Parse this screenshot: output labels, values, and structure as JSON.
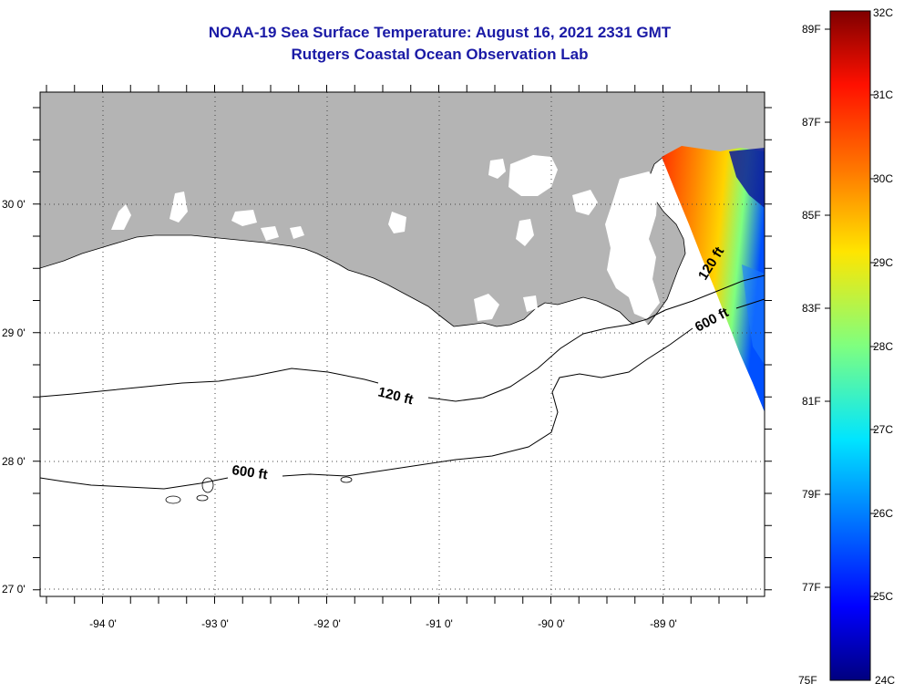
{
  "title": "NOAA-19 Sea Surface Temperature:  August 16, 2021 2331 GMT",
  "subtitle": "Rutgers Coastal Ocean Observation Lab",
  "map": {
    "lon_labels": [
      "-94 0'",
      "-93 0'",
      "-92 0'",
      "-91 0'",
      "-90 0'",
      "-89 0'"
    ],
    "lat_labels": [
      "30 0'",
      "29 0'",
      "28 0'",
      "27 0'"
    ],
    "contour_labels": {
      "shelf_120_west": "120 ft",
      "shelf_120_east": "120 ft",
      "slope_600_west": "600 ft",
      "slope_600_east": "600 ft"
    },
    "grid": "dotted",
    "colors": {
      "land": "#b4b4b4",
      "water": "#ffffff",
      "no_data": "#ffffff",
      "title": "#1a1aa6"
    }
  },
  "colorbar": {
    "fahrenheit_labels": [
      "89F",
      "87F",
      "85F",
      "83F",
      "81F",
      "79F",
      "77F",
      "75F"
    ],
    "celsius_labels": [
      "32C",
      "31C",
      "30C",
      "29C",
      "28C",
      "27C",
      "26C",
      "25C",
      "24C"
    ],
    "range_c": [
      24,
      32
    ],
    "colormap": "jet"
  }
}
